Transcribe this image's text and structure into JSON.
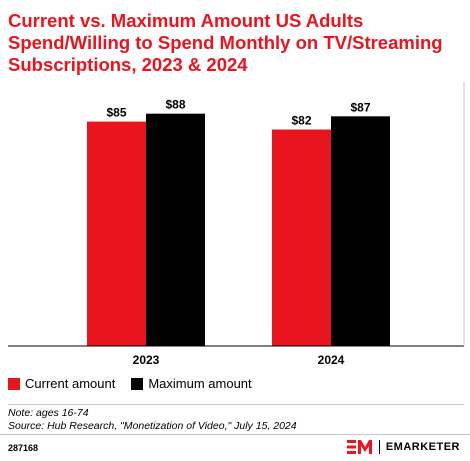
{
  "title": "Current vs. Maximum Amount US Adults Spend/Willing to Spend Monthly on TV/Streaming Subscriptions, 2023 & 2024",
  "colors": {
    "current": "#e8141e",
    "maximum": "#000000",
    "title": "#e8141e"
  },
  "chart_data": {
    "type": "bar",
    "categories": [
      "2023",
      "2024"
    ],
    "series": [
      {
        "name": "Current amount",
        "values": [
          85,
          82
        ],
        "labels": [
          "$85",
          "$82"
        ]
      },
      {
        "name": "Maximum amount",
        "values": [
          88,
          87
        ],
        "labels": [
          "$88",
          "$87"
        ]
      }
    ],
    "ylim": [
      0,
      100
    ],
    "grid": false,
    "legend_position": "bottom-left"
  },
  "legend": {
    "current": "Current amount",
    "maximum": "Maximum amount"
  },
  "note": "Note: ages 16-74",
  "source": "Source: Hub Research, \"Monetization of Video,\" July 15, 2024",
  "chart_id": "287168",
  "brand": "EMARKETER",
  "logo_icon": "em-logo-icon"
}
